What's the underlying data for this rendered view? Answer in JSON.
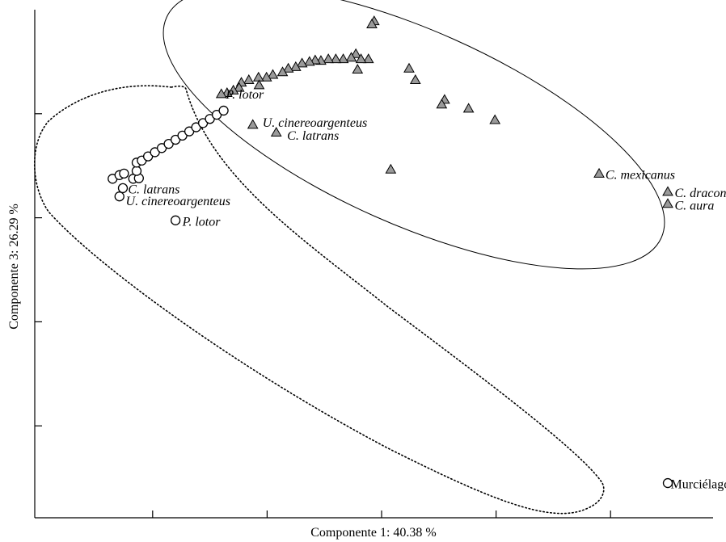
{
  "chart_data": {
    "type": "scatter",
    "xlabel": "Componente 1: 40.38 %",
    "ylabel": "Componente 3: 26.29 %",
    "xlim": [
      0,
      12
    ],
    "ylim": [
      0,
      10
    ],
    "series": [
      {
        "marker": "triangle",
        "color": "#9a9a9a",
        "points": [
          [
            4.87,
            9.78
          ],
          [
            4.83,
            9.72
          ],
          [
            4.55,
            9.15
          ],
          [
            4.47,
            9.08
          ],
          [
            4.77,
            9.05
          ],
          [
            4.64,
            9.05
          ],
          [
            4.33,
            9.05
          ],
          [
            4.2,
            9.05
          ],
          [
            4.07,
            9.05
          ],
          [
            3.94,
            9.02
          ],
          [
            3.84,
            9.03
          ],
          [
            3.74,
            9.0
          ],
          [
            3.61,
            8.97
          ],
          [
            3.5,
            8.9
          ],
          [
            3.37,
            8.87
          ],
          [
            3.27,
            8.8
          ],
          [
            3.1,
            8.75
          ],
          [
            2.99,
            8.7
          ],
          [
            2.85,
            8.7
          ],
          [
            2.68,
            8.65
          ],
          [
            2.55,
            8.6
          ],
          [
            2.51,
            8.5
          ],
          [
            2.41,
            8.45
          ],
          [
            2.3,
            8.4
          ],
          [
            2.2,
            8.38
          ],
          [
            2.86,
            8.55
          ],
          [
            4.58,
            8.85
          ],
          [
            5.48,
            8.87
          ],
          [
            5.59,
            8.65
          ],
          [
            6.1,
            8.27
          ],
          [
            6.05,
            8.18
          ],
          [
            6.52,
            8.1
          ],
          [
            6.98,
            7.88
          ],
          [
            5.16,
            6.93
          ],
          [
            2.75,
            7.79
          ],
          [
            3.16,
            7.64
          ],
          [
            8.8,
            6.85
          ],
          [
            10.0,
            6.5
          ],
          [
            10.0,
            6.27
          ]
        ]
      },
      {
        "marker": "circle",
        "color": "#ffffff",
        "points": [
          [
            0.3,
            6.75
          ],
          [
            0.42,
            6.82
          ],
          [
            0.5,
            6.85
          ],
          [
            0.66,
            6.75
          ],
          [
            0.76,
            6.76
          ],
          [
            0.72,
            6.9
          ],
          [
            0.72,
            7.06
          ],
          [
            0.81,
            7.1
          ],
          [
            0.92,
            7.18
          ],
          [
            1.04,
            7.26
          ],
          [
            1.16,
            7.34
          ],
          [
            1.28,
            7.42
          ],
          [
            1.4,
            7.5
          ],
          [
            1.52,
            7.58
          ],
          [
            1.64,
            7.66
          ],
          [
            1.76,
            7.74
          ],
          [
            1.88,
            7.82
          ],
          [
            2.0,
            7.9
          ],
          [
            2.12,
            7.98
          ],
          [
            2.24,
            8.06
          ],
          [
            0.48,
            6.57
          ],
          [
            0.42,
            6.41
          ],
          [
            1.4,
            5.95
          ],
          [
            10.0,
            0.9
          ]
        ]
      }
    ],
    "annotations": [
      {
        "text": "P. lotor",
        "style": "italic",
        "at": [
          2.28,
          8.29
        ]
      },
      {
        "text": "U. cinereoargenteus",
        "style": "italic",
        "at": [
          2.92,
          7.75
        ]
      },
      {
        "text": "C. latrans",
        "style": "italic",
        "at": [
          3.35,
          7.5
        ]
      },
      {
        "text": "C. mexicanus",
        "style": "italic",
        "at": [
          8.91,
          6.75
        ]
      },
      {
        "text": "C. draconoides",
        "style": "italic",
        "at": [
          10.12,
          6.4
        ]
      },
      {
        "text": "C. aura",
        "style": "italic",
        "at": [
          10.12,
          6.16
        ]
      },
      {
        "text": "C. latrans",
        "style": "italic",
        "at": [
          0.57,
          6.47
        ]
      },
      {
        "text": "U. cinereoargenteus",
        "style": "italic",
        "at": [
          0.53,
          6.24
        ]
      },
      {
        "text": "P. lotor",
        "style": "italic",
        "at": [
          1.52,
          5.85
        ]
      },
      {
        "text": "Murciélago",
        "style": "normal",
        "at": [
          10.05,
          0.8
        ]
      }
    ],
    "grid": false,
    "legend": "none"
  }
}
